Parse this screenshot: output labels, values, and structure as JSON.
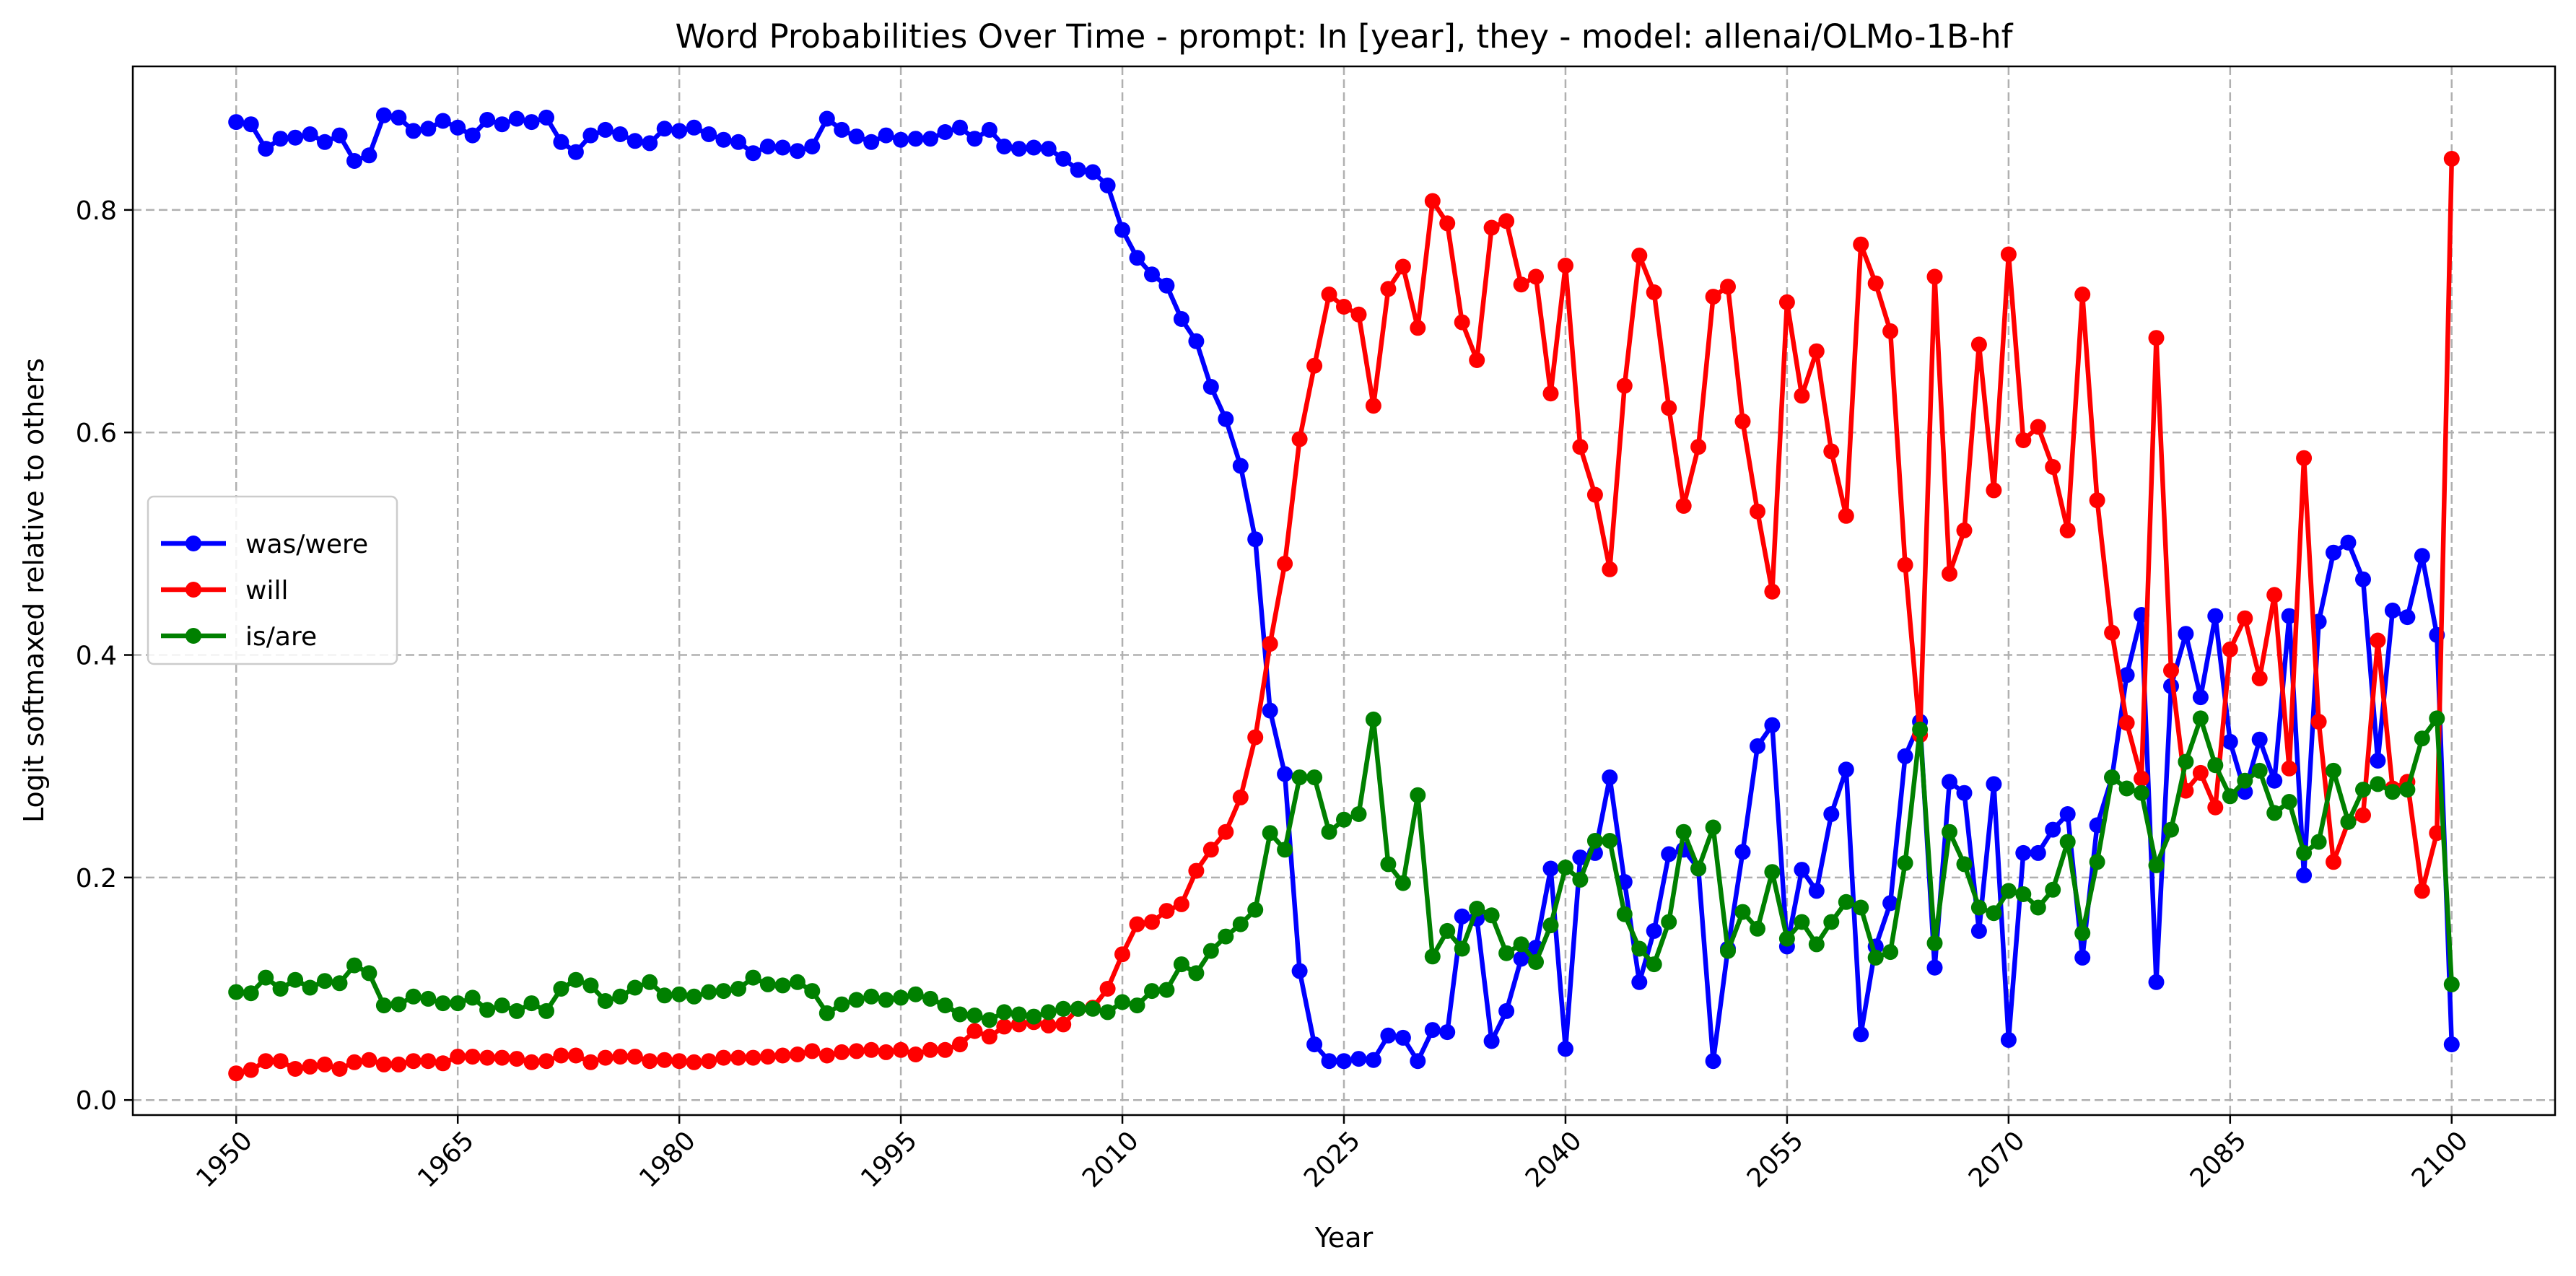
{
  "chart_data": {
    "type": "line",
    "title": "Word Probabilities Over Time - prompt: In [year], they - model: allenai/OLMo-1B-hf",
    "xlabel": "Year",
    "ylabel": "Logit softmaxed relative to others",
    "xlim": [
      1943,
      2107
    ],
    "ylim": [
      -0.0135,
      0.929
    ],
    "xticks": [
      1950,
      1965,
      1980,
      1995,
      2010,
      2025,
      2040,
      2055,
      2070,
      2085,
      2100
    ],
    "yticks": [
      0.0,
      0.2,
      0.4,
      0.6,
      0.8
    ],
    "ytick_labels": [
      "0.0",
      "0.2",
      "0.4",
      "0.6",
      "0.8"
    ],
    "grid": true,
    "legend_position": "center-left",
    "x_start": 1950,
    "series": [
      {
        "name": "was/were",
        "color": "#0000ff",
        "values": [
          0.879,
          0.877,
          0.855,
          0.864,
          0.865,
          0.868,
          0.861,
          0.867,
          0.844,
          0.849,
          0.885,
          0.883,
          0.871,
          0.873,
          0.88,
          0.874,
          0.867,
          0.881,
          0.877,
          0.882,
          0.879,
          0.883,
          0.861,
          0.852,
          0.867,
          0.872,
          0.868,
          0.862,
          0.86,
          0.873,
          0.871,
          0.874,
          0.868,
          0.863,
          0.861,
          0.851,
          0.857,
          0.856,
          0.853,
          0.857,
          0.882,
          0.872,
          0.866,
          0.861,
          0.867,
          0.863,
          0.864,
          0.864,
          0.87,
          0.874,
          0.864,
          0.872,
          0.857,
          0.855,
          0.856,
          0.855,
          0.846,
          0.836,
          0.834,
          0.822,
          0.782,
          0.757,
          0.742,
          0.732,
          0.702,
          0.682,
          0.641,
          0.612,
          0.57,
          0.504,
          0.35,
          0.293,
          0.116,
          0.05,
          0.035,
          0.035,
          0.037,
          0.036,
          0.058,
          0.056,
          0.035,
          0.063,
          0.061,
          0.165,
          0.163,
          0.053,
          0.08,
          0.127,
          0.137,
          0.208,
          0.046,
          0.218,
          0.222,
          0.29,
          0.196,
          0.106,
          0.152,
          0.221,
          0.225,
          0.208,
          0.035,
          0.136,
          0.223,
          0.318,
          0.337,
          0.138,
          0.207,
          0.188,
          0.257,
          0.297,
          0.059,
          0.138,
          0.177,
          0.309,
          0.34,
          0.119,
          0.286,
          0.276,
          0.152,
          0.284,
          0.054,
          0.222,
          0.222,
          0.243,
          0.257,
          0.128,
          0.247,
          0.29,
          0.382,
          0.436,
          0.106,
          0.372,
          0.419,
          0.362,
          0.435,
          0.322,
          0.277,
          0.324,
          0.287,
          0.435,
          0.202,
          0.43,
          0.492,
          0.501,
          0.468,
          0.305,
          0.44,
          0.434,
          0.489,
          0.418,
          0.05
        ]
      },
      {
        "name": "will",
        "color": "#ff0000",
        "values": [
          0.024,
          0.027,
          0.035,
          0.035,
          0.028,
          0.03,
          0.032,
          0.028,
          0.034,
          0.036,
          0.032,
          0.032,
          0.035,
          0.035,
          0.033,
          0.039,
          0.039,
          0.038,
          0.038,
          0.037,
          0.034,
          0.035,
          0.04,
          0.04,
          0.034,
          0.038,
          0.039,
          0.039,
          0.035,
          0.036,
          0.035,
          0.034,
          0.035,
          0.038,
          0.038,
          0.038,
          0.039,
          0.04,
          0.041,
          0.044,
          0.04,
          0.043,
          0.044,
          0.045,
          0.043,
          0.045,
          0.041,
          0.045,
          0.045,
          0.05,
          0.062,
          0.057,
          0.066,
          0.068,
          0.07,
          0.067,
          0.068,
          0.082,
          0.083,
          0.1,
          0.131,
          0.158,
          0.16,
          0.17,
          0.176,
          0.206,
          0.225,
          0.241,
          0.272,
          0.326,
          0.41,
          0.482,
          0.594,
          0.66,
          0.724,
          0.713,
          0.706,
          0.624,
          0.729,
          0.749,
          0.694,
          0.808,
          0.788,
          0.699,
          0.665,
          0.784,
          0.79,
          0.733,
          0.74,
          0.635,
          0.75,
          0.587,
          0.544,
          0.477,
          0.642,
          0.759,
          0.726,
          0.622,
          0.534,
          0.587,
          0.722,
          0.731,
          0.61,
          0.529,
          0.457,
          0.717,
          0.633,
          0.673,
          0.583,
          0.525,
          0.769,
          0.734,
          0.691,
          0.481,
          0.328,
          0.74,
          0.473,
          0.512,
          0.679,
          0.548,
          0.76,
          0.593,
          0.605,
          0.569,
          0.512,
          0.724,
          0.539,
          0.42,
          0.339,
          0.289,
          0.685,
          0.386,
          0.278,
          0.294,
          0.263,
          0.405,
          0.433,
          0.379,
          0.454,
          0.298,
          0.577,
          0.34,
          0.214,
          0.25,
          0.256,
          0.413,
          0.28,
          0.286,
          0.188,
          0.24,
          0.846
        ]
      },
      {
        "name": "is/are",
        "color": "#008000",
        "values": [
          0.097,
          0.096,
          0.11,
          0.1,
          0.108,
          0.101,
          0.107,
          0.105,
          0.121,
          0.114,
          0.085,
          0.086,
          0.093,
          0.091,
          0.087,
          0.087,
          0.092,
          0.081,
          0.085,
          0.08,
          0.087,
          0.08,
          0.1,
          0.108,
          0.103,
          0.089,
          0.093,
          0.101,
          0.106,
          0.094,
          0.095,
          0.093,
          0.097,
          0.098,
          0.1,
          0.11,
          0.104,
          0.103,
          0.106,
          0.098,
          0.078,
          0.086,
          0.09,
          0.093,
          0.09,
          0.092,
          0.095,
          0.091,
          0.085,
          0.077,
          0.076,
          0.072,
          0.079,
          0.077,
          0.075,
          0.079,
          0.082,
          0.082,
          0.082,
          0.079,
          0.088,
          0.085,
          0.098,
          0.099,
          0.122,
          0.114,
          0.134,
          0.147,
          0.158,
          0.171,
          0.24,
          0.225,
          0.29,
          0.29,
          0.241,
          0.252,
          0.257,
          0.342,
          0.212,
          0.195,
          0.274,
          0.129,
          0.152,
          0.136,
          0.172,
          0.166,
          0.132,
          0.14,
          0.124,
          0.157,
          0.209,
          0.198,
          0.233,
          0.233,
          0.167,
          0.136,
          0.122,
          0.16,
          0.241,
          0.208,
          0.245,
          0.134,
          0.169,
          0.154,
          0.205,
          0.145,
          0.16,
          0.14,
          0.16,
          0.178,
          0.173,
          0.128,
          0.133,
          0.213,
          0.333,
          0.141,
          0.241,
          0.212,
          0.173,
          0.168,
          0.188,
          0.185,
          0.173,
          0.189,
          0.232,
          0.15,
          0.214,
          0.29,
          0.28,
          0.276,
          0.211,
          0.243,
          0.304,
          0.343,
          0.301,
          0.273,
          0.287,
          0.296,
          0.258,
          0.268,
          0.222,
          0.232,
          0.296,
          0.25,
          0.279,
          0.284,
          0.277,
          0.279,
          0.325,
          0.343,
          0.104
        ]
      }
    ]
  }
}
